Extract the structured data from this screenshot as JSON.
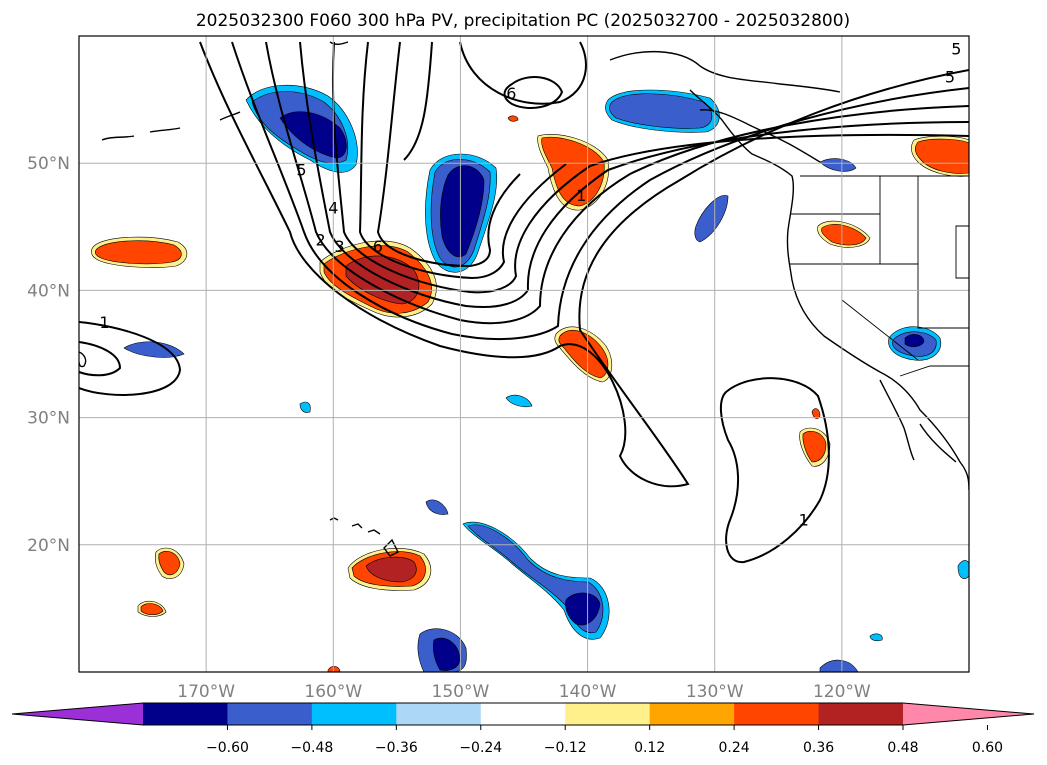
{
  "map": {
    "title": "2025032300 F060 300 hPa PV, precipitation PC (2025032700 - 2025032800)",
    "extent": {
      "lon_min": -180,
      "lon_max": -110,
      "lat_min": 10,
      "lat_max": 60
    },
    "gridlines": true,
    "lon_ticks": [
      {
        "lon": -170,
        "label": "170°W"
      },
      {
        "lon": -160,
        "label": "160°W"
      },
      {
        "lon": -150,
        "label": "150°W"
      },
      {
        "lon": -140,
        "label": "140°W"
      },
      {
        "lon": -130,
        "label": "130°W"
      },
      {
        "lon": -120,
        "label": "120°W"
      }
    ],
    "lat_ticks": [
      {
        "lat": 50,
        "label": "50°N"
      },
      {
        "lat": 40,
        "label": "40°N"
      },
      {
        "lat": 30,
        "label": "30°N"
      },
      {
        "lat": 20,
        "label": "20°N"
      }
    ],
    "contour_labels": [
      {
        "text": "1",
        "lon": -178,
        "lat": 37.5
      },
      {
        "text": "1",
        "lon": -140.5,
        "lat": 47.5
      },
      {
        "text": "1",
        "lon": -123,
        "lat": 22
      },
      {
        "text": "2",
        "lon": -161,
        "lat": 44
      },
      {
        "text": "3",
        "lon": -159.5,
        "lat": 43.5
      },
      {
        "text": "4",
        "lon": -160,
        "lat": 46.5
      },
      {
        "text": "5",
        "lon": -162.5,
        "lat": 49.5
      },
      {
        "text": "5",
        "lon": -111,
        "lat": 59
      },
      {
        "text": "5",
        "lon": -111.5,
        "lat": 56.8
      },
      {
        "text": "6",
        "lon": -146,
        "lat": 55.5
      },
      {
        "text": "6",
        "lon": -156.5,
        "lat": 43.5
      }
    ]
  },
  "colorbar": {
    "colors": [
      "#9b30d9",
      "#00008b",
      "#3a5fcd",
      "#00bfff",
      "#add8f5",
      "#ffffff",
      "#fff08c",
      "#ffa500",
      "#ff4500",
      "#b22222",
      "#ff88aa"
    ],
    "labels": [
      "−0.60",
      "−0.48",
      "−0.36",
      "−0.24",
      "−0.12",
      "0.12",
      "0.24",
      "0.36",
      "0.48",
      "0.60"
    ]
  }
}
